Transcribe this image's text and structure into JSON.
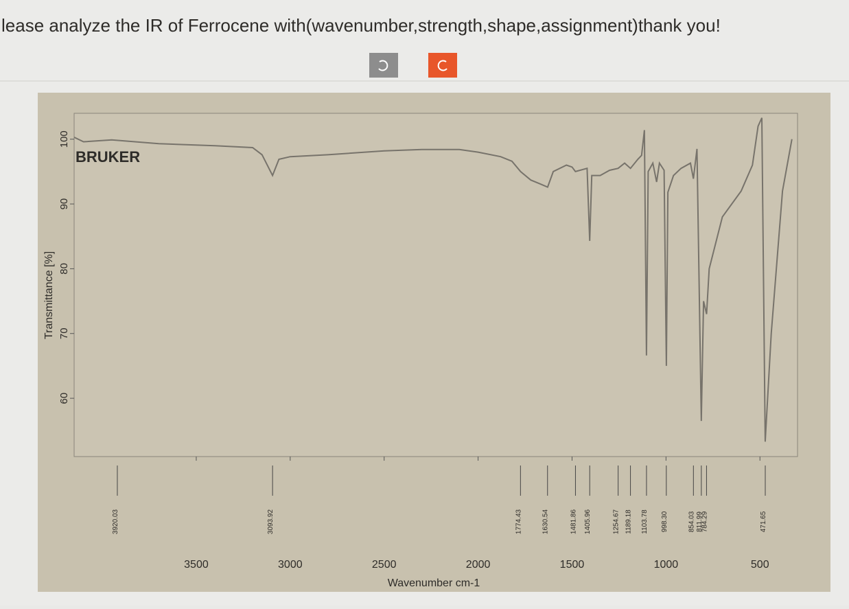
{
  "question": "lease analyze the IR of Ferrocene with(wavenumber,strength,shape,assignment)thank you!",
  "chart_data": {
    "type": "line",
    "brand": "BRUKER",
    "x_label": "Wavenumber cm-1",
    "y_label": "Transmittance [%]",
    "xlim": [
      4150,
      300
    ],
    "ylim": [
      51,
      104
    ],
    "xticks": [
      3500,
      3000,
      2500,
      2000,
      1500,
      1000,
      500
    ],
    "yticks": [
      60,
      70,
      80,
      90,
      100
    ],
    "color": "#77736b",
    "x": [
      4150,
      4100,
      3950,
      3700,
      3400,
      3200,
      3150,
      3094,
      3060,
      3000,
      2800,
      2500,
      2300,
      2100,
      2000,
      1880,
      1820,
      1774,
      1720,
      1670,
      1630,
      1600,
      1530,
      1500,
      1482,
      1420,
      1406,
      1395,
      1350,
      1300,
      1255,
      1220,
      1189,
      1150,
      1130,
      1115,
      1104,
      1095,
      1070,
      1050,
      1035,
      1010,
      998,
      990,
      960,
      920,
      870,
      854,
      835,
      812,
      800,
      784,
      770,
      700,
      600,
      540,
      510,
      490,
      472,
      440,
      380,
      330
    ],
    "values": [
      100.3,
      99.6,
      99.9,
      99.3,
      99,
      98.7,
      97.6,
      94.4,
      96.9,
      97.3,
      97.6,
      98.2,
      98.4,
      98.4,
      98,
      97.3,
      96.6,
      95,
      93.7,
      93.1,
      92.6,
      95,
      96,
      95.7,
      95,
      95.5,
      84.3,
      94.4,
      94.4,
      95.2,
      95.5,
      96.3,
      95.5,
      96.9,
      97.5,
      101.4,
      66.6,
      95,
      96.3,
      93.4,
      96.3,
      95.2,
      65,
      91.8,
      94.4,
      95.5,
      96.3,
      93.9,
      98.5,
      56.5,
      75,
      73,
      80,
      88,
      92,
      96,
      102,
      103.3,
      53.3,
      70,
      92,
      100
    ],
    "peaks": [
      3920.03,
      3093.92,
      1774.43,
      1630.54,
      1481.86,
      1405.96,
      1254.67,
      1189.18,
      1103.78,
      {
        "value": 998.3,
        "label": "998.30"
      },
      854.03,
      811.99,
      784.29,
      471.65
    ]
  }
}
